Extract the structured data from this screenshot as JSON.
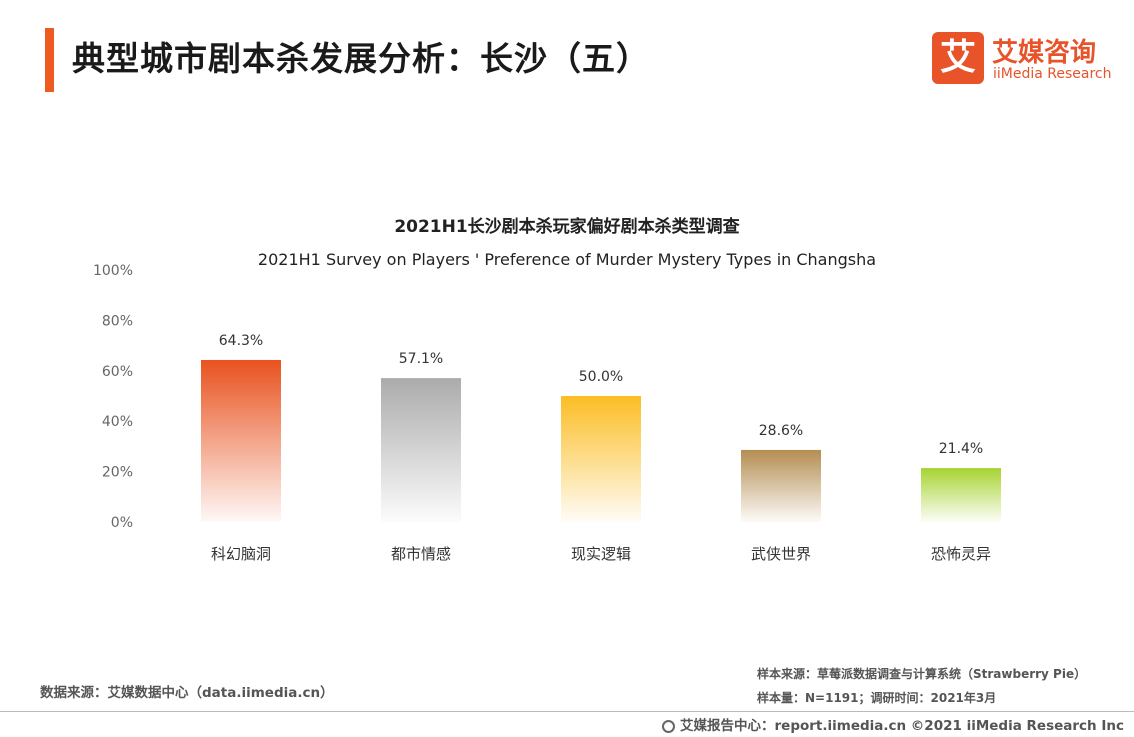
{
  "header": {
    "title": "典型城市剧本杀发展分析：长沙（五）",
    "logo_mark": "艾",
    "logo_cn": "艾媒咨询",
    "logo_en": "iiMedia Research"
  },
  "colors": {
    "accent": "#ef5a23",
    "bars": [
      "#e8521f",
      "#ababab",
      "#fbbd23",
      "#b48d52",
      "#a7d332"
    ]
  },
  "chart_data": {
    "type": "bar",
    "title": "2021H1长沙剧本杀玩家偏好剧本杀类型调查",
    "subtitle": "2021H1 Survey on Players ' Preference of Murder Mystery Types in Changsha",
    "categories": [
      "科幻脑洞",
      "都市情感",
      "现实逻辑",
      "武侠世界",
      "恐怖灵异"
    ],
    "values": [
      64.3,
      57.1,
      50.0,
      28.6,
      21.4
    ],
    "value_labels": [
      "64.3%",
      "57.1%",
      "50.0%",
      "28.6%",
      "21.4%"
    ],
    "yticks": [
      "0%",
      "20%",
      "40%",
      "60%",
      "80%",
      "100%"
    ],
    "ylim": [
      0,
      100
    ],
    "grid": false,
    "legend": "none"
  },
  "footer": {
    "data_source": "数据来源：艾媒数据中心（data.iimedia.cn）",
    "sample_source": "样本来源：草莓派数据调查与计算系统（Strawberry Pie）",
    "sample_size": "样本量：N=1191；调研时间：2021年3月",
    "copyright": "艾媒报告中心：report.iimedia.cn  ©2021  iiMedia Research  Inc"
  }
}
